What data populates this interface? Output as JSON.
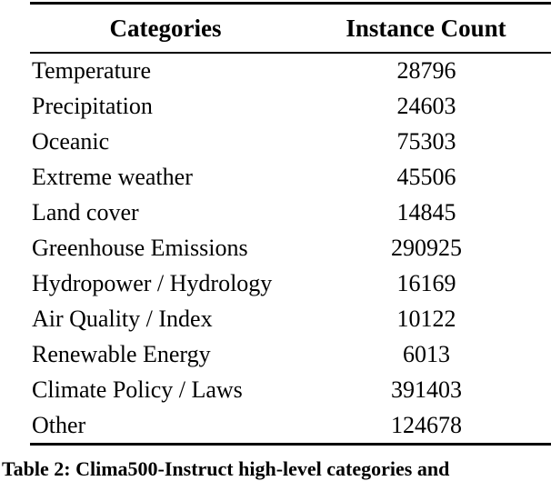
{
  "table": {
    "columns": [
      "Categories",
      "Instance Count"
    ],
    "rows": [
      {
        "category": "Temperature",
        "count": 28796
      },
      {
        "category": "Precipitation",
        "count": 24603
      },
      {
        "category": "Oceanic",
        "count": 75303
      },
      {
        "category": "Extreme weather",
        "count": 45506
      },
      {
        "category": "Land cover",
        "count": 14845
      },
      {
        "category": "Greenhouse Emissions",
        "count": 290925
      },
      {
        "category": "Hydropower / Hydrology",
        "count": 16169
      },
      {
        "category": "Air Quality / Index",
        "count": 10122
      },
      {
        "category": "Renewable Energy",
        "count": 6013
      },
      {
        "category": "Climate Policy / Laws",
        "count": 391403
      },
      {
        "category": "Other",
        "count": 124678
      }
    ]
  },
  "caption": {
    "label": "Table 2:",
    "text": "Clima500-Instruct high-level categories and"
  },
  "colors": {
    "background": "#ffffff",
    "text": "#000000",
    "rule": "#000000"
  }
}
